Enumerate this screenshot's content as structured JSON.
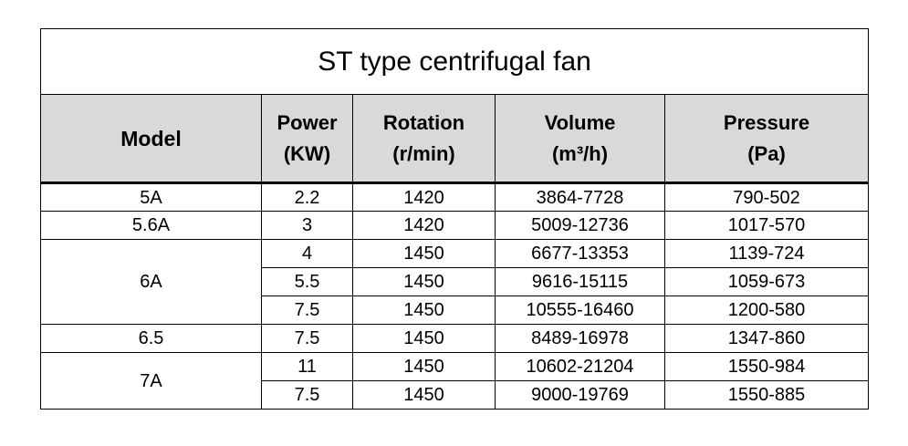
{
  "title": "ST type centrifugal fan",
  "headers": {
    "model": "Model",
    "power": [
      "Power",
      "(KW)"
    ],
    "rotation": [
      "Rotation",
      "(r/min)"
    ],
    "volume": [
      "Volume",
      "(m³/h)"
    ],
    "pressure": [
      "Pressure",
      "(Pa)"
    ]
  },
  "rows": [
    {
      "model": "5A",
      "power": "2.2",
      "rotation": "1420",
      "volume": "3864-7728",
      "pressure": "790-502"
    },
    {
      "model": "5.6A",
      "power": "3",
      "rotation": "1420",
      "volume": "5009-12736",
      "pressure": "1017-570"
    },
    {
      "model": "6A",
      "power": "4",
      "rotation": "1450",
      "volume": "6677-13353",
      "pressure": "1139-724"
    },
    {
      "model": "",
      "power": "5.5",
      "rotation": "1450",
      "volume": "9616-15115",
      "pressure": "1059-673"
    },
    {
      "model": "",
      "power": "7.5",
      "rotation": "1450",
      "volume": "10555-16460",
      "pressure": "1200-580"
    },
    {
      "model": "6.5",
      "power": "7.5",
      "rotation": "1450",
      "volume": "8489-16978",
      "pressure": "1347-860"
    },
    {
      "model": "7A",
      "power": "11",
      "rotation": "1450",
      "volume": "10602-21204",
      "pressure": "1550-984"
    },
    {
      "model": "",
      "power": "7.5",
      "rotation": "1450",
      "volume": "9000-19769",
      "pressure": "1550-885"
    }
  ]
}
